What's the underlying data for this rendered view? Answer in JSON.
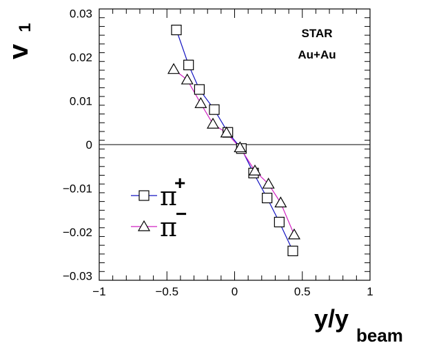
{
  "chart_data": {
    "type": "scatter",
    "xlabel": {
      "main": "y/y",
      "sub": "beam"
    },
    "ylabel": {
      "main": "v",
      "sub": "1"
    },
    "xlim": [
      -1,
      1
    ],
    "ylim": [
      -0.031,
      0.031
    ],
    "x_ticks": [
      -1,
      -0.5,
      0,
      0.5,
      1
    ],
    "x_tick_labels": [
      "−1",
      "−0.5",
      "0",
      "0.5",
      "1"
    ],
    "y_ticks": [
      -0.03,
      -0.02,
      -0.01,
      0,
      0.01,
      0.02,
      0.03
    ],
    "y_tick_labels": [
      "−0.03",
      "−0.02",
      "−0.01",
      "0",
      "0.01",
      "0.02",
      "0.03"
    ],
    "annotation": [
      "STAR",
      "Au+Au"
    ],
    "legend_position": "bottom-left",
    "series": [
      {
        "name": {
          "base": "π",
          "sup": "+"
        },
        "marker": "square",
        "line_color": "#1010c0",
        "points": [
          [
            -0.43,
            0.0262
          ],
          [
            -0.34,
            0.0182
          ],
          [
            -0.26,
            0.0126
          ],
          [
            -0.15,
            0.008
          ],
          [
            -0.05,
            0.0028
          ],
          [
            0.05,
            -0.0009
          ],
          [
            0.14,
            -0.0065
          ],
          [
            0.24,
            -0.0122
          ],
          [
            0.33,
            -0.0177
          ],
          [
            0.43,
            -0.0243
          ]
        ]
      },
      {
        "name": {
          "base": "π",
          "sup": "−"
        },
        "marker": "triangle",
        "line_color": "#d020c0",
        "points": [
          [
            -0.45,
            0.0172
          ],
          [
            -0.35,
            0.0148
          ],
          [
            -0.25,
            0.0094
          ],
          [
            -0.16,
            0.0047
          ],
          [
            -0.06,
            0.0027
          ],
          [
            0.04,
            -0.0007
          ],
          [
            0.15,
            -0.006
          ],
          [
            0.25,
            -0.009
          ],
          [
            0.34,
            -0.0133
          ],
          [
            0.44,
            -0.0206
          ]
        ]
      }
    ]
  }
}
